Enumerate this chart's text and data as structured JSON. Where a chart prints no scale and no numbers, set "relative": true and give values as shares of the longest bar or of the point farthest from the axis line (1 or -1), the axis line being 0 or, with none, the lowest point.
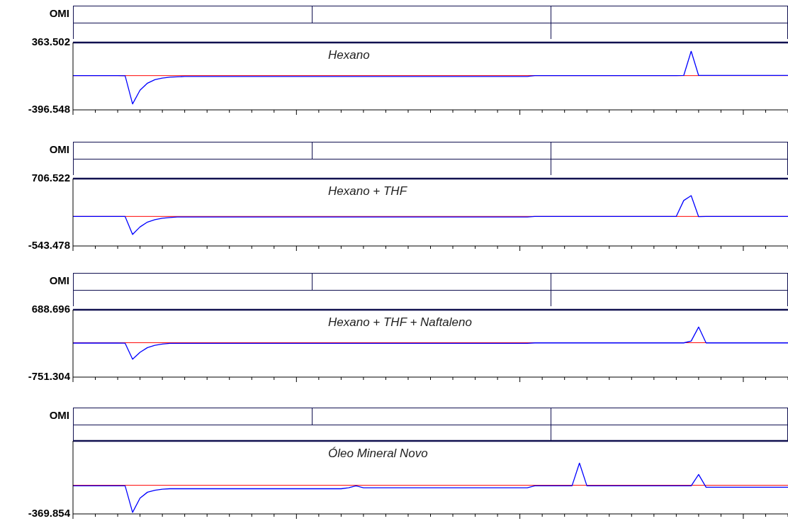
{
  "chart_data": [
    {
      "type": "line",
      "title": "Hexano",
      "annotations": [
        "OMI"
      ],
      "categories": [
        null,
        null,
        null,
        null,
        null,
        null,
        null,
        null,
        null,
        null,
        null,
        null,
        null,
        null,
        null,
        null,
        null,
        null,
        null,
        null,
        null,
        null,
        null,
        null,
        null,
        null,
        null,
        null,
        null,
        null,
        null,
        null,
        null,
        null,
        null,
        null,
        null,
        null,
        null,
        null,
        null,
        null,
        null,
        null,
        null,
        null,
        null,
        null,
        null,
        null,
        null,
        null,
        null,
        null,
        null,
        null,
        null,
        null,
        null,
        null,
        null,
        null,
        null,
        null,
        null,
        null,
        null,
        null,
        null,
        null,
        null,
        null,
        null,
        null,
        null,
        null,
        null,
        null,
        null,
        null,
        null,
        null,
        null,
        null,
        null,
        null,
        null,
        null,
        null,
        null,
        null,
        null,
        null,
        null,
        null,
        null,
        null
      ],
      "series": [
        {
          "color": "#0000ff",
          "values": [
            -10,
            -10,
            -10,
            -10,
            -10,
            -10,
            -10,
            -12,
            -330,
            -175,
            -95,
            -55,
            -38,
            -28,
            -24,
            -20,
            -20,
            -20,
            -20,
            -20,
            -20,
            -20,
            -20,
            -20,
            -20,
            -20,
            -20,
            -20,
            -20,
            -20,
            -20,
            -20,
            -20,
            -20,
            -20,
            -20,
            -20,
            -20,
            -20,
            -20,
            -20,
            -20,
            -20,
            -20,
            -20,
            -20,
            -20,
            -20,
            -20,
            -20,
            -20,
            -20,
            -20,
            -20,
            -20,
            -20,
            -20,
            -20,
            -20,
            -20,
            -20,
            -20,
            -10,
            -10,
            -10,
            -10,
            -10,
            -10,
            -10,
            -10,
            -10,
            -10,
            -10,
            -10,
            -10,
            -10,
            -10,
            -10,
            -10,
            -10,
            -10,
            -10,
            -8,
            265,
            -8,
            -8,
            -8,
            -8,
            -8,
            -8,
            -8,
            -8,
            -8,
            -8,
            -8,
            -8,
            -8
          ]
        }
      ],
      "ylim": [
        -396.548,
        363.502
      ],
      "yticks": [
        -396.548,
        363.502
      ],
      "ref_lines": [
        {
          "axis": "y",
          "value": -10,
          "color": "#ff0000"
        }
      ],
      "grid": false,
      "legend": false,
      "tick_labels": "y",
      "line_style": "solid",
      "marker": "none"
    },
    {
      "type": "line",
      "title": "Hexano + THF",
      "annotations": [
        "OMI"
      ],
      "categories": [
        null,
        null,
        null,
        null,
        null,
        null,
        null,
        null,
        null,
        null,
        null,
        null,
        null,
        null,
        null,
        null,
        null,
        null,
        null,
        null,
        null,
        null,
        null,
        null,
        null,
        null,
        null,
        null,
        null,
        null,
        null,
        null,
        null,
        null,
        null,
        null,
        null,
        null,
        null,
        null,
        null,
        null,
        null,
        null,
        null,
        null,
        null,
        null,
        null,
        null,
        null,
        null,
        null,
        null,
        null,
        null,
        null,
        null,
        null,
        null,
        null,
        null,
        null,
        null,
        null,
        null,
        null,
        null,
        null,
        null,
        null,
        null,
        null,
        null,
        null,
        null,
        null,
        null,
        null,
        null,
        null,
        null,
        null,
        null,
        null,
        null,
        null,
        null,
        null,
        null,
        null,
        null,
        null,
        null,
        null,
        null,
        null
      ],
      "series": [
        {
          "color": "#0000ff",
          "values": [
            5,
            5,
            5,
            5,
            5,
            5,
            5,
            3,
            -330,
            -190,
            -100,
            -55,
            -30,
            -15,
            -5,
            -5,
            -5,
            -5,
            -5,
            -5,
            -5,
            -5,
            -5,
            -5,
            -5,
            -5,
            -5,
            -5,
            -5,
            -5,
            -5,
            -5,
            -5,
            -5,
            -5,
            -5,
            -5,
            -5,
            -5,
            -5,
            -5,
            -5,
            -5,
            -5,
            -5,
            -5,
            -5,
            -5,
            -5,
            -5,
            -5,
            -5,
            -5,
            -5,
            -5,
            -5,
            -5,
            -5,
            -5,
            -5,
            -5,
            -5,
            5,
            5,
            5,
            5,
            5,
            5,
            5,
            5,
            5,
            5,
            5,
            5,
            5,
            5,
            5,
            5,
            5,
            5,
            5,
            5,
            300,
            390,
            0,
            5,
            5,
            5,
            5,
            5,
            5,
            5,
            5,
            5,
            5,
            5,
            5
          ]
        }
      ],
      "ylim": [
        -543.478,
        706.522
      ],
      "yticks": [
        -543.478,
        706.522
      ],
      "ref_lines": [
        {
          "axis": "y",
          "value": 5,
          "color": "#ff0000"
        }
      ],
      "grid": false,
      "legend": false,
      "tick_labels": "y",
      "line_style": "solid",
      "marker": "none"
    },
    {
      "type": "line",
      "title": "Hexano + THF + Naftaleno",
      "annotations": [
        "OMI"
      ],
      "categories": [
        null,
        null,
        null,
        null,
        null,
        null,
        null,
        null,
        null,
        null,
        null,
        null,
        null,
        null,
        null,
        null,
        null,
        null,
        null,
        null,
        null,
        null,
        null,
        null,
        null,
        null,
        null,
        null,
        null,
        null,
        null,
        null,
        null,
        null,
        null,
        null,
        null,
        null,
        null,
        null,
        null,
        null,
        null,
        null,
        null,
        null,
        null,
        null,
        null,
        null,
        null,
        null,
        null,
        null,
        null,
        null,
        null,
        null,
        null,
        null,
        null,
        null,
        null,
        null,
        null,
        null,
        null,
        null,
        null,
        null,
        null,
        null,
        null,
        null,
        null,
        null,
        null,
        null,
        null,
        null,
        null,
        null,
        null,
        null,
        null,
        null,
        null,
        null,
        null,
        null,
        null,
        null,
        null,
        null,
        null,
        null,
        null
      ],
      "series": [
        {
          "color": "#0000ff",
          "values": [
            -24,
            -24,
            -24,
            -24,
            -24,
            -24,
            -24,
            -26,
            -370,
            -220,
            -120,
            -70,
            -45,
            -30,
            -28,
            -28,
            -28,
            -28,
            -28,
            -28,
            -28,
            -28,
            -28,
            -28,
            -28,
            -28,
            -28,
            -28,
            -28,
            -28,
            -28,
            -28,
            -28,
            -28,
            -28,
            -28,
            -28,
            -28,
            -28,
            -28,
            -28,
            -28,
            -28,
            -28,
            -28,
            -28,
            -28,
            -28,
            -28,
            -28,
            -28,
            -28,
            -28,
            -28,
            -28,
            -28,
            -28,
            -28,
            -28,
            -28,
            -28,
            -28,
            -20,
            -20,
            -20,
            -20,
            -20,
            -20,
            -20,
            -20,
            -20,
            -20,
            -20,
            -20,
            -20,
            -20,
            -20,
            -20,
            -20,
            -20,
            -20,
            -20,
            -20,
            20,
            320,
            -20,
            -20,
            -20,
            -20,
            -20,
            -20,
            -20,
            -20,
            -20,
            -20,
            -20,
            -20
          ]
        }
      ],
      "ylim": [
        -751.304,
        688.696
      ],
      "yticks": [
        -751.304,
        688.696
      ],
      "ref_lines": [
        {
          "axis": "y",
          "value": -15,
          "color": "#ff0000"
        }
      ],
      "grid": false,
      "legend": false,
      "tick_labels": "y",
      "line_style": "solid",
      "marker": "none"
    },
    {
      "type": "line",
      "title": "Óleo Mineral Novo",
      "annotations": [
        "OMI",
        "-369.854"
      ],
      "relative": true,
      "categories": [
        null,
        null,
        null,
        null,
        null,
        null,
        null,
        null,
        null,
        null,
        null,
        null,
        null,
        null,
        null,
        null,
        null,
        null,
        null,
        null,
        null,
        null,
        null,
        null,
        null,
        null,
        null,
        null,
        null,
        null,
        null,
        null,
        null,
        null,
        null,
        null,
        null,
        null,
        null,
        null,
        null,
        null,
        null,
        null,
        null,
        null,
        null,
        null,
        null,
        null,
        null,
        null,
        null,
        null,
        null,
        null,
        null,
        null,
        null,
        null,
        null,
        null,
        null,
        null,
        null,
        null,
        null,
        null,
        null,
        null,
        null,
        null,
        null,
        null,
        null,
        null,
        null,
        null,
        null,
        null,
        null,
        null,
        null,
        null,
        null,
        null,
        null,
        null,
        null,
        null,
        null,
        null,
        null,
        null,
        null,
        null,
        null
      ],
      "series": [
        {
          "color": "#0000ff",
          "values": [
            0.54,
            0.54,
            0.54,
            0.54,
            0.54,
            0.54,
            0.54,
            0.54,
            0,
            0.29,
            0.41,
            0.45,
            0.47,
            0.48,
            0.48,
            0.48,
            0.48,
            0.48,
            0.48,
            0.48,
            0.48,
            0.48,
            0.48,
            0.48,
            0.48,
            0.48,
            0.48,
            0.48,
            0.48,
            0.48,
            0.48,
            0.48,
            0.48,
            0.48,
            0.48,
            0.48,
            0.48,
            0.5,
            0.54,
            0.5,
            0.5,
            0.5,
            0.5,
            0.5,
            0.5,
            0.5,
            0.5,
            0.5,
            0.5,
            0.5,
            0.5,
            0.5,
            0.5,
            0.5,
            0.5,
            0.5,
            0.5,
            0.5,
            0.5,
            0.5,
            0.5,
            0.5,
            0.54,
            0.54,
            0.54,
            0.54,
            0.54,
            0.54,
            1,
            0.54,
            0.54,
            0.54,
            0.54,
            0.54,
            0.54,
            0.54,
            0.54,
            0.54,
            0.54,
            0.54,
            0.54,
            0.54,
            0.54,
            0.54,
            0.77,
            0.51,
            0.51,
            0.51,
            0.51,
            0.51,
            0.51,
            0.51,
            0.51,
            0.51,
            0.51,
            0.51,
            0.51
          ]
        }
      ],
      "ref_lines": [
        {
          "axis": "y",
          "value": 0.55,
          "color": "#ff0000"
        }
      ],
      "grid": false,
      "legend": false,
      "tick_labels": "y",
      "line_style": "solid",
      "marker": "none"
    }
  ]
}
